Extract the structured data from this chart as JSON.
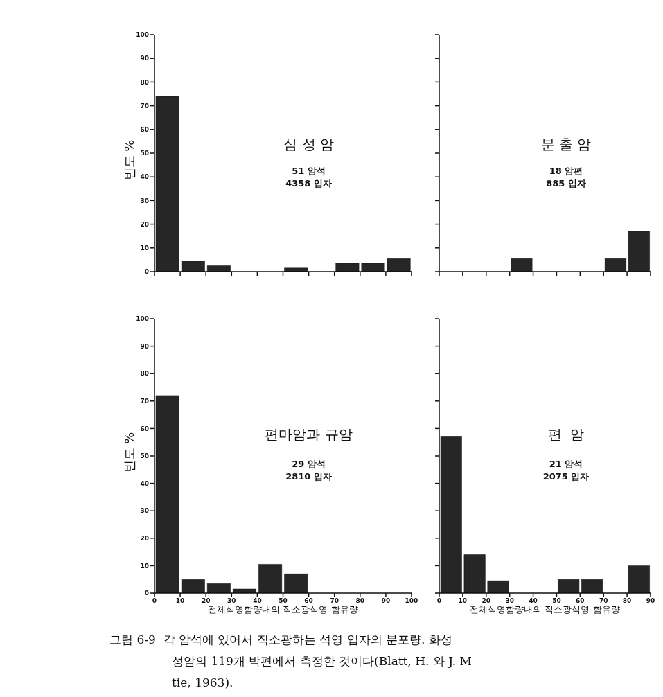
{
  "chart_data": [
    {
      "type": "histogram",
      "title": "심 성 암",
      "annotations": [
        "51 암석",
        "4358 입자"
      ],
      "ylabel": "빈도 %",
      "bins": [
        0,
        10,
        20,
        30,
        40,
        50,
        60,
        70,
        80,
        90,
        100
      ],
      "values": [
        74,
        4.5,
        2.5,
        0,
        0,
        1.5,
        0,
        3.5,
        3.5,
        5.5
      ],
      "color": "#262626",
      "xlim": [
        0,
        100
      ],
      "ylim": [
        0,
        100
      ],
      "xticks": [
        0,
        10,
        20,
        30,
        40,
        50,
        60,
        70,
        80,
        90,
        100
      ],
      "yticks": [
        0,
        10,
        20,
        30,
        40,
        50,
        60,
        70,
        80,
        90,
        100
      ],
      "tick_labels": "y"
    },
    {
      "type": "histogram",
      "title": "분 출 암",
      "annotations": [
        "18 암편",
        "885 입자"
      ],
      "bins": [
        0,
        10,
        20,
        30,
        40,
        50,
        60,
        70,
        80,
        90
      ],
      "values": [
        0,
        0,
        0,
        5.5,
        0,
        0,
        0,
        5.5,
        17
      ],
      "color": "#262626",
      "xlim": [
        0,
        90
      ],
      "ylim": [
        0,
        100
      ],
      "xticks": [
        0,
        10,
        20,
        30,
        40,
        50,
        60,
        70,
        80,
        90
      ],
      "yticks": [
        0,
        10,
        20,
        30,
        40,
        50,
        60,
        70,
        80,
        90,
        100
      ],
      "tick_labels": false
    },
    {
      "type": "histogram",
      "title": "편마암과 규암",
      "annotations": [
        "29 암석",
        "2810 입자"
      ],
      "xlabel": "전체석영함량내의 직소광석영 함유량",
      "ylabel": "빈도 %",
      "bins": [
        0,
        10,
        20,
        30,
        40,
        50,
        60,
        70,
        80,
        90,
        100
      ],
      "values": [
        72,
        5,
        3.5,
        1.5,
        10.5,
        7,
        0,
        0,
        0,
        0
      ],
      "color": "#262626",
      "xlim": [
        0,
        100
      ],
      "ylim": [
        0,
        100
      ],
      "xticks": [
        0,
        10,
        20,
        30,
        40,
        50,
        60,
        70,
        80,
        90,
        100
      ],
      "yticks": [
        0,
        10,
        20,
        30,
        40,
        50,
        60,
        70,
        80,
        90,
        100
      ]
    },
    {
      "type": "histogram",
      "title": "편  암",
      "annotations": [
        "21 암석",
        "2075 입자"
      ],
      "xlabel": "전체석영함량내의 직소광석영 함유량",
      "bins": [
        0,
        10,
        20,
        30,
        40,
        50,
        60,
        70,
        80,
        90
      ],
      "values": [
        57,
        14,
        4.5,
        0,
        0,
        5,
        5,
        0,
        10
      ],
      "color": "#262626",
      "xlim": [
        0,
        90
      ],
      "ylim": [
        0,
        100
      ],
      "xticks": [
        0,
        10,
        20,
        30,
        40,
        50,
        60,
        70,
        80,
        90
      ],
      "yticks": [
        0,
        10,
        20,
        30,
        40,
        50,
        60,
        70,
        80,
        90,
        100
      ],
      "tick_labels": "x"
    },
    {
      "type": "other",
      "annotations": [
        "그림 6-9  각 암석에 있어서 직소광하는 석영 입자의 분포량. 화성",
        "성암의 119개 박편에서 측정한 것이다(Blatt, H. 와 J. M",
        "tie, 1963)."
      ]
    }
  ]
}
